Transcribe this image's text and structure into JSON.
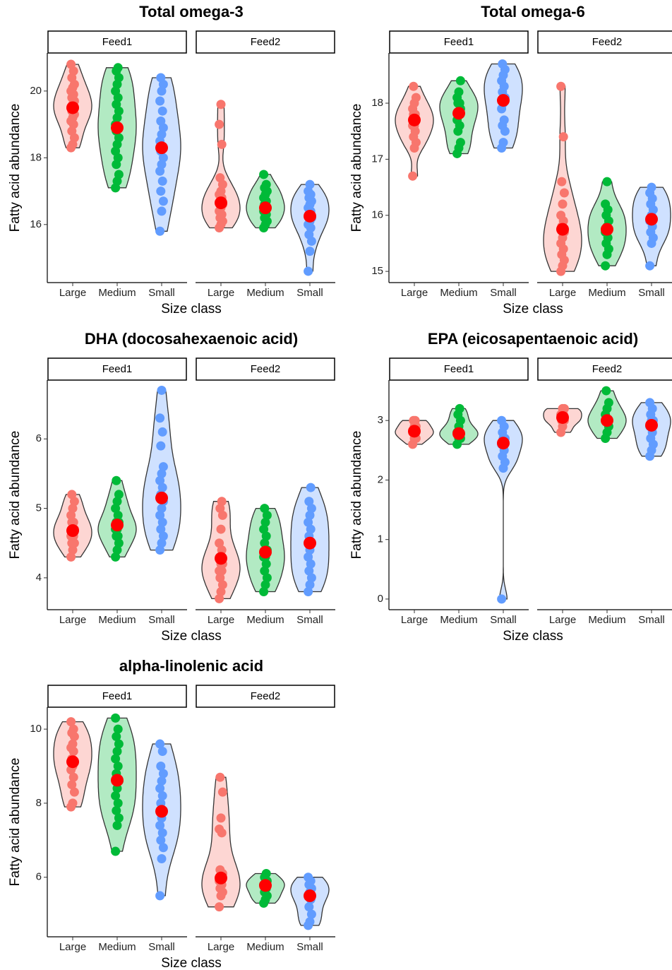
{
  "chart_data": [
    {
      "type": "violin",
      "title": "Total omega-3",
      "x_label": "Size class",
      "y_label": "Fatty acid abundance",
      "categories": [
        "Large",
        "Medium",
        "Small"
      ],
      "colors": [
        "#F8766D",
        "#00BA38",
        "#619CFF"
      ],
      "mean_color": "#FF0000",
      "ylim": [
        14.26,
        21.14
      ],
      "yticks": [
        16,
        18,
        20
      ],
      "facets": [
        {
          "name": "Feed1",
          "means": [
            19.5,
            18.9,
            18.3
          ],
          "points": [
            [
              18.3,
              18.4,
              18.6,
              18.8,
              19.0,
              19.1,
              19.2,
              19.3,
              19.4,
              19.5,
              19.5,
              19.6,
              19.7,
              19.8,
              19.9,
              20.0,
              20.1,
              20.2,
              20.4,
              20.6,
              20.8
            ],
            [
              17.1,
              17.3,
              17.5,
              17.8,
              18.0,
              18.2,
              18.4,
              18.6,
              18.8,
              18.9,
              19.0,
              19.2,
              19.4,
              19.6,
              19.8,
              20.0,
              20.2,
              20.4,
              20.6,
              20.7
            ],
            [
              15.8,
              16.4,
              16.7,
              17.0,
              17.3,
              17.6,
              17.8,
              18.0,
              18.2,
              18.3,
              18.5,
              18.7,
              18.9,
              19.1,
              19.4,
              19.7,
              20.0,
              20.2,
              20.4
            ]
          ]
        },
        {
          "name": "Feed2",
          "means": [
            16.65,
            16.5,
            16.25
          ],
          "points": [
            [
              15.9,
              16.0,
              16.1,
              16.2,
              16.3,
              16.4,
              16.5,
              16.6,
              16.7,
              16.8,
              16.9,
              17.0,
              17.2,
              17.4,
              18.4,
              19.0,
              19.6
            ],
            [
              15.9,
              16.0,
              16.1,
              16.2,
              16.3,
              16.4,
              16.5,
              16.5,
              16.6,
              16.7,
              16.8,
              16.9,
              17.0,
              17.1,
              17.2,
              17.5
            ],
            [
              14.6,
              15.2,
              15.5,
              15.7,
              15.9,
              16.0,
              16.1,
              16.2,
              16.3,
              16.4,
              16.5,
              16.6,
              16.7,
              16.8,
              16.9,
              17.0,
              17.2
            ]
          ]
        }
      ]
    },
    {
      "type": "violin",
      "title": "Total omega-6",
      "x_label": "Size class",
      "y_label": "Fatty acid abundance",
      "categories": [
        "Large",
        "Medium",
        "Small"
      ],
      "colors": [
        "#F8766D",
        "#00BA38",
        "#619CFF"
      ],
      "mean_color": "#FF0000",
      "ylim": [
        14.8,
        18.895
      ],
      "yticks": [
        15,
        16,
        17,
        18
      ],
      "facets": [
        {
          "name": "Feed1",
          "means": [
            17.7,
            17.82,
            18.05
          ],
          "points": [
            [
              16.7,
              17.2,
              17.3,
              17.4,
              17.5,
              17.6,
              17.6,
              17.7,
              17.8,
              17.8,
              17.9,
              18.0,
              18.1,
              18.3
            ],
            [
              17.1,
              17.2,
              17.3,
              17.5,
              17.6,
              17.7,
              17.8,
              17.9,
              18.0,
              18.0,
              18.1,
              18.2,
              18.4
            ],
            [
              17.2,
              17.3,
              17.5,
              17.6,
              17.7,
              17.9,
              18.0,
              18.1,
              18.2,
              18.3,
              18.4,
              18.5,
              18.6,
              18.7
            ]
          ]
        },
        {
          "name": "Feed2",
          "means": [
            15.75,
            15.75,
            15.93
          ],
          "points": [
            [
              15.0,
              15.1,
              15.2,
              15.3,
              15.4,
              15.5,
              15.6,
              15.7,
              15.8,
              15.9,
              16.0,
              16.2,
              16.4,
              16.6,
              17.4,
              18.3
            ],
            [
              15.1,
              15.3,
              15.4,
              15.5,
              15.6,
              15.7,
              15.8,
              15.9,
              16.0,
              16.1,
              16.2,
              16.6
            ],
            [
              15.1,
              15.5,
              15.6,
              15.7,
              15.8,
              15.9,
              16.0,
              16.1,
              16.2,
              16.3,
              16.4,
              16.5
            ]
          ]
        }
      ]
    },
    {
      "type": "violin",
      "title": "DHA (docosahexaenoic acid)",
      "x_label": "Size class",
      "y_label": "Fatty acid abundance",
      "categories": [
        "Large",
        "Medium",
        "Small"
      ],
      "colors": [
        "#F8766D",
        "#00BA38",
        "#619CFF"
      ],
      "mean_color": "#FF0000",
      "ylim": [
        3.541,
        6.847
      ],
      "yticks": [
        4,
        5,
        6
      ],
      "facets": [
        {
          "name": "Feed1",
          "means": [
            4.68,
            4.76,
            5.15
          ],
          "points": [
            [
              4.3,
              4.4,
              4.5,
              4.5,
              4.6,
              4.6,
              4.7,
              4.7,
              4.8,
              4.8,
              4.9,
              5.0,
              5.1,
              5.2
            ],
            [
              4.3,
              4.4,
              4.5,
              4.6,
              4.6,
              4.7,
              4.7,
              4.8,
              4.8,
              4.9,
              5.0,
              5.1,
              5.2,
              5.4
            ],
            [
              4.4,
              4.5,
              4.6,
              4.7,
              4.8,
              4.9,
              5.0,
              5.1,
              5.2,
              5.3,
              5.4,
              5.5,
              5.6,
              5.9,
              6.1,
              6.3,
              6.7
            ]
          ]
        },
        {
          "name": "Feed2",
          "means": [
            4.28,
            4.37,
            4.5
          ],
          "points": [
            [
              3.7,
              3.8,
              3.9,
              4.0,
              4.1,
              4.1,
              4.2,
              4.2,
              4.3,
              4.4,
              4.5,
              4.7,
              4.9,
              5.0,
              5.1
            ],
            [
              3.8,
              3.9,
              4.0,
              4.1,
              4.2,
              4.3,
              4.3,
              4.4,
              4.5,
              4.6,
              4.7,
              4.8,
              4.9,
              5.0
            ],
            [
              3.8,
              3.9,
              4.0,
              4.1,
              4.2,
              4.3,
              4.4,
              4.5,
              4.6,
              4.7,
              4.8,
              4.9,
              5.0,
              5.1,
              5.3
            ]
          ]
        }
      ]
    },
    {
      "type": "violin",
      "title": "EPA (eicosapentaenoic acid)",
      "x_label": "Size class",
      "y_label": "Fatty acid abundance",
      "categories": [
        "Large",
        "Medium",
        "Small"
      ],
      "colors": [
        "#F8766D",
        "#00BA38",
        "#619CFF"
      ],
      "mean_color": "#FF0000",
      "ylim": [
        -0.179,
        3.679
      ],
      "yticks": [
        0,
        1,
        2,
        3
      ],
      "facets": [
        {
          "name": "Feed1",
          "means": [
            2.82,
            2.78,
            2.62
          ],
          "points": [
            [
              2.6,
              2.7,
              2.7,
              2.8,
              2.8,
              2.8,
              2.9,
              2.9,
              3.0,
              3.0
            ],
            [
              2.6,
              2.7,
              2.7,
              2.8,
              2.8,
              2.8,
              2.9,
              3.0,
              3.1,
              3.2
            ],
            [
              0.0,
              2.2,
              2.3,
              2.4,
              2.5,
              2.6,
              2.7,
              2.7,
              2.8,
              2.9,
              3.0
            ]
          ]
        },
        {
          "name": "Feed2",
          "means": [
            3.05,
            3.0,
            2.92
          ],
          "points": [
            [
              2.8,
              2.9,
              3.0,
              3.0,
              3.1,
              3.1,
              3.2,
              3.2
            ],
            [
              2.7,
              2.8,
              2.9,
              3.0,
              3.0,
              3.1,
              3.2,
              3.3,
              3.5
            ],
            [
              2.4,
              2.5,
              2.6,
              2.7,
              2.8,
              2.9,
              3.0,
              3.0,
              3.1,
              3.2,
              3.3
            ]
          ]
        }
      ]
    },
    {
      "type": "violin",
      "title": "alpha-linolenic acid",
      "x_label": "Size class",
      "y_label": "Fatty acid abundance",
      "categories": [
        "Large",
        "Medium",
        "Small"
      ],
      "colors": [
        "#F8766D",
        "#00BA38",
        "#619CFF"
      ],
      "mean_color": "#FF0000",
      "ylim": [
        4.392,
        10.593
      ],
      "yticks": [
        6,
        8,
        10
      ],
      "facets": [
        {
          "name": "Feed1",
          "means": [
            9.12,
            8.62,
            7.78
          ],
          "points": [
            [
              7.9,
              8.0,
              8.3,
              8.5,
              8.7,
              8.9,
              9.0,
              9.1,
              9.2,
              9.4,
              9.5,
              9.6,
              9.8,
              9.9,
              10.0,
              10.2
            ],
            [
              6.7,
              7.4,
              7.6,
              7.8,
              8.0,
              8.2,
              8.4,
              8.6,
              8.8,
              9.0,
              9.2,
              9.4,
              9.6,
              9.8,
              10.0,
              10.3
            ],
            [
              5.5,
              6.5,
              6.8,
              7.0,
              7.2,
              7.4,
              7.6,
              7.8,
              8.0,
              8.2,
              8.4,
              8.6,
              8.8,
              9.0,
              9.4,
              9.6
            ]
          ]
        },
        {
          "name": "Feed2",
          "means": [
            5.98,
            5.78,
            5.5
          ],
          "points": [
            [
              5.2,
              5.5,
              5.6,
              5.7,
              5.8,
              5.9,
              6.0,
              6.1,
              6.2,
              7.2,
              7.3,
              7.6,
              8.3,
              8.7
            ],
            [
              5.3,
              5.4,
              5.5,
              5.6,
              5.7,
              5.8,
              5.8,
              5.9,
              6.0,
              6.1
            ],
            [
              4.7,
              4.8,
              5.0,
              5.2,
              5.4,
              5.5,
              5.6,
              5.7,
              5.8,
              5.9,
              6.0
            ]
          ]
        }
      ]
    }
  ]
}
